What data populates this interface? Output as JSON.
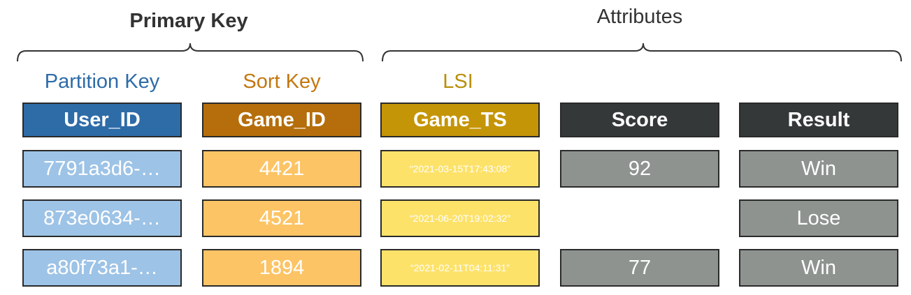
{
  "groups": {
    "primary_key": "Primary Key",
    "attributes": "Attributes"
  },
  "key_labels": {
    "partition_key": "Partition Key",
    "sort_key": "Sort Key",
    "lsi": "LSI"
  },
  "colors": {
    "user_id_header": "#2e6ca8",
    "user_id_cell": "#9dc3e6",
    "game_id_header": "#b56e0b",
    "game_id_cell": "#fcc465",
    "game_ts_header": "#c59508",
    "game_ts_cell": "#fde26a",
    "dark_header": "#353839",
    "gray_cell": "#8e9390",
    "partition_label": "#2e6ca8",
    "sort_label": "#c2780f",
    "lsi_label": "#b8900a"
  },
  "table": {
    "headers": [
      "User_ID",
      "Game_ID",
      "Game_TS",
      "Score",
      "Result"
    ],
    "rows": [
      [
        "7791a3d6-…",
        "4421",
        "“2021-03-15T17:43:08”",
        "92",
        "Win"
      ],
      [
        "873e0634-…",
        "4521",
        "“2021-06-20T19:02:32”",
        "",
        "Lose"
      ],
      [
        "a80f73a1-…",
        "1894",
        "“2021-02-11T04:11:31”",
        "77",
        "Win"
      ]
    ]
  }
}
